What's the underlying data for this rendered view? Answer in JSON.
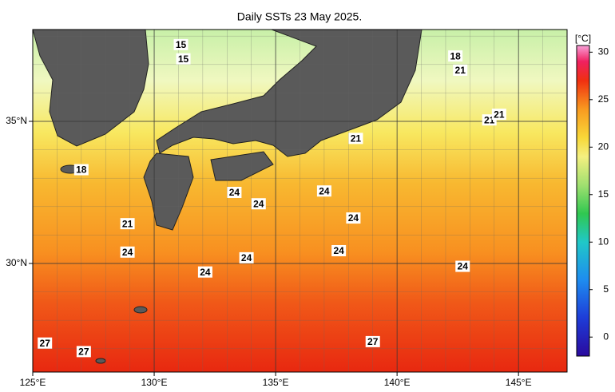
{
  "chart_data": {
    "type": "map",
    "title": "Daily SSTs 23 May 2025.",
    "xlim": [
      125,
      147
    ],
    "ylim": [
      26.18,
      38.23
    ],
    "xticks": [
      {
        "value": 125,
        "label": "125°E"
      },
      {
        "value": 130,
        "label": "130°E"
      },
      {
        "value": 135,
        "label": "135°E"
      },
      {
        "value": 140,
        "label": "140°E"
      },
      {
        "value": 145,
        "label": "145°E"
      }
    ],
    "yticks": [
      {
        "value": 30,
        "label": "30°N"
      },
      {
        "value": 35,
        "label": "35°N"
      }
    ],
    "grid_step": 1,
    "colorbar": {
      "label": "[°C]",
      "lim": [
        -2,
        30.7
      ],
      "ticks": [
        0,
        5,
        10,
        15,
        20,
        25,
        30
      ],
      "colormap": [
        {
          "value": -2,
          "color": "#2a0a9e"
        },
        {
          "value": 2,
          "color": "#1e3cd8"
        },
        {
          "value": 6,
          "color": "#1e8cf0"
        },
        {
          "value": 10,
          "color": "#20c8c8"
        },
        {
          "value": 13,
          "color": "#30c850"
        },
        {
          "value": 16,
          "color": "#a0e070"
        },
        {
          "value": 19,
          "color": "#f4f080"
        },
        {
          "value": 21,
          "color": "#f8d838"
        },
        {
          "value": 24,
          "color": "#f89a20"
        },
        {
          "value": 27,
          "color": "#f03010"
        },
        {
          "value": 29,
          "color": "#f02060"
        },
        {
          "value": 30.7,
          "color": "#f8a0d8"
        }
      ]
    },
    "contour_labels": [
      {
        "label": "15",
        "lon": 131.1,
        "lat": 37.7
      },
      {
        "label": "15",
        "lon": 131.2,
        "lat": 37.2
      },
      {
        "label": "18",
        "lon": 142.4,
        "lat": 37.3
      },
      {
        "label": "21",
        "lon": 142.6,
        "lat": 36.8
      },
      {
        "label": "21",
        "lon": 143.8,
        "lat": 35.05
      },
      {
        "label": "21",
        "lon": 144.2,
        "lat": 35.25
      },
      {
        "label": "21",
        "lon": 138.3,
        "lat": 34.4
      },
      {
        "label": "18",
        "lon": 127.0,
        "lat": 33.3
      },
      {
        "label": "24",
        "lon": 133.3,
        "lat": 32.5
      },
      {
        "label": "24",
        "lon": 134.3,
        "lat": 32.1
      },
      {
        "label": "24",
        "lon": 137.0,
        "lat": 32.55
      },
      {
        "label": "24",
        "lon": 138.2,
        "lat": 31.6
      },
      {
        "label": "21",
        "lon": 128.9,
        "lat": 31.4
      },
      {
        "label": "24",
        "lon": 128.9,
        "lat": 30.4
      },
      {
        "label": "24",
        "lon": 133.8,
        "lat": 30.2
      },
      {
        "label": "24",
        "lon": 137.6,
        "lat": 30.45
      },
      {
        "label": "24",
        "lon": 142.7,
        "lat": 29.9
      },
      {
        "label": "24",
        "lon": 132.1,
        "lat": 29.7
      },
      {
        "label": "27",
        "lon": 125.5,
        "lat": 27.2
      },
      {
        "label": "27",
        "lon": 127.1,
        "lat": 26.9
      },
      {
        "label": "27",
        "lon": 139.0,
        "lat": 27.25
      }
    ]
  }
}
